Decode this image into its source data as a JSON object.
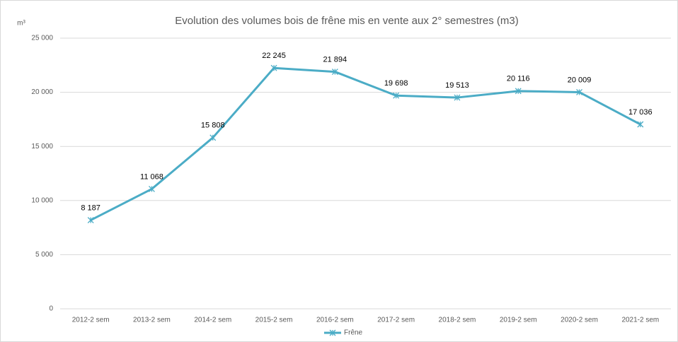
{
  "chart_data": {
    "type": "line",
    "title": "Evolution des volumes bois de frêne mis en vente aux 2° semestres (m3)",
    "y_unit": "m³",
    "categories": [
      "2012-2 sem",
      "2013-2 sem",
      "2014-2 sem",
      "2015-2 sem",
      "2016-2 sem",
      "2017-2 sem",
      "2018-2 sem",
      "2019-2 sem",
      "2020-2 sem",
      "2021-2 sem"
    ],
    "series": [
      {
        "name": "Frêne",
        "color": "#4bacc6",
        "values": [
          8187,
          11068,
          15808,
          22245,
          21894,
          19698,
          19513,
          20116,
          20009,
          17036
        ],
        "value_labels": [
          "8 187",
          "11 068",
          "15 808",
          "22 245",
          "21 894",
          "19 698",
          "19 513",
          "20 116",
          "20 009",
          "17 036"
        ]
      }
    ],
    "ylim": [
      0,
      25000
    ],
    "yticks": [
      0,
      {
        "value": 5000,
        "label": "5 000"
      },
      {
        "value": 10000,
        "label": "10 000"
      },
      {
        "value": 15000,
        "label": "15 000"
      },
      {
        "value": 20000,
        "label": "20 000"
      },
      {
        "value": 25000,
        "label": "25 000"
      }
    ],
    "grid": true,
    "legend": "bottom"
  }
}
